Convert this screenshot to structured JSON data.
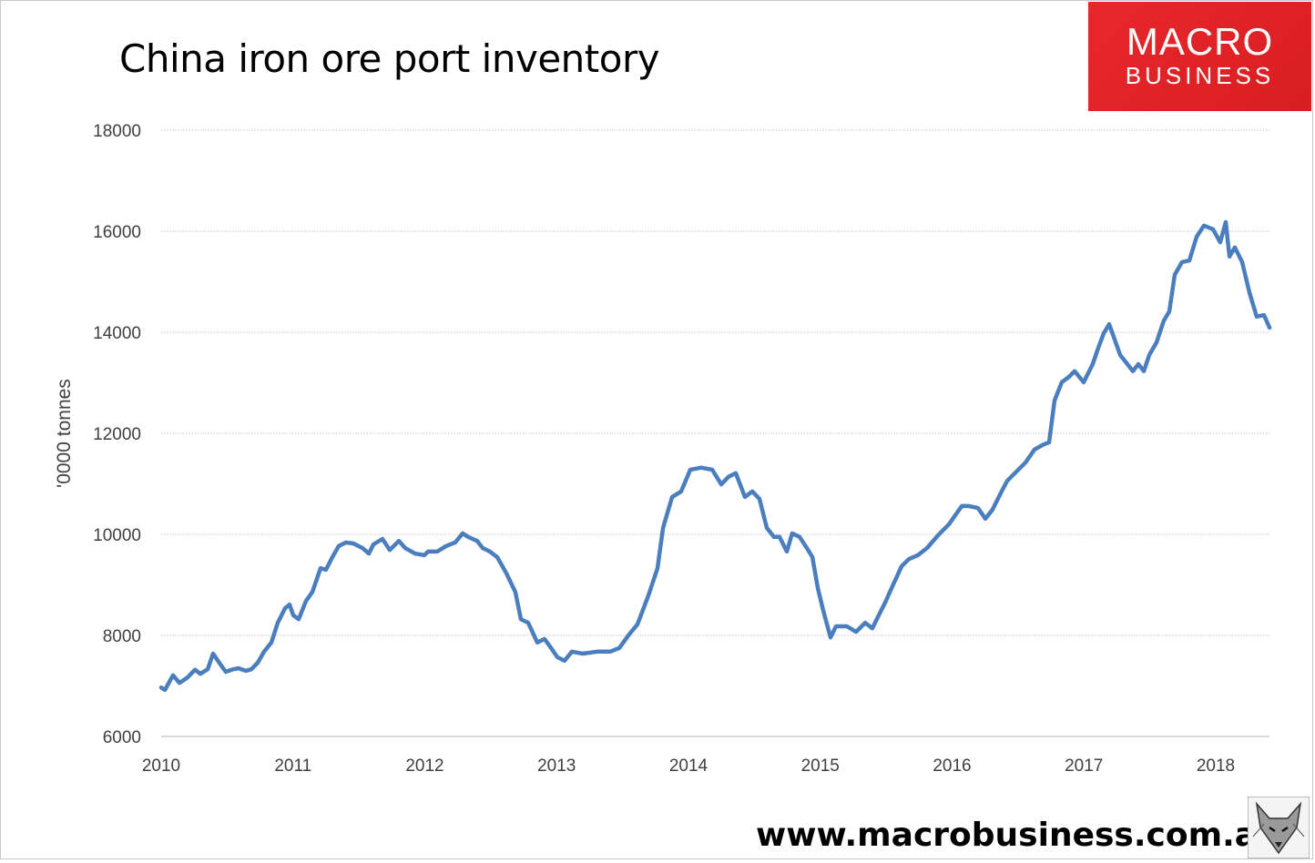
{
  "chart_data": {
    "type": "line",
    "title": "China iron ore port inventory",
    "xlabel": "",
    "ylabel": "'0000 tonnes",
    "xlim": [
      2010,
      2018.42
    ],
    "ylim": [
      6000,
      18000
    ],
    "x_ticks": [
      "2010",
      "2011",
      "2012",
      "2013",
      "2014",
      "2015",
      "2016",
      "2017",
      "2018"
    ],
    "y_ticks": [
      "6000",
      "8000",
      "10000",
      "12000",
      "14000",
      "16000",
      "18000"
    ],
    "grid": "horizontal",
    "legend": "none",
    "line_color": "#4a7ebf",
    "series": [
      {
        "x": [
          2010.0,
          2010.028,
          2010.09,
          2010.138,
          2010.2,
          2010.256,
          2010.297,
          2010.352,
          2010.394,
          2010.435,
          2010.49,
          2010.546,
          2010.587,
          2010.642,
          2010.684,
          2010.732,
          2010.781,
          2010.836,
          2010.884,
          2010.94,
          2010.974,
          2011.002,
          2011.043,
          2011.098,
          2011.147,
          2011.209,
          2011.25,
          2011.299,
          2011.347,
          2011.402,
          2011.458,
          2011.527,
          2011.575,
          2011.61,
          2011.679,
          2011.734,
          2011.803,
          2011.851,
          2011.927,
          2011.997,
          2012.024,
          2012.093,
          2012.162,
          2012.231,
          2012.287,
          2012.328,
          2012.397,
          2012.439,
          2012.494,
          2012.549,
          2012.618,
          2012.687,
          2012.729,
          2012.784,
          2012.853,
          2012.908,
          2012.95,
          2013.005,
          2013.06,
          2013.116,
          2013.198,
          2013.309,
          2013.406,
          2013.475,
          2013.544,
          2013.613,
          2013.696,
          2013.765,
          2013.807,
          2013.876,
          2013.945,
          2014.014,
          2014.097,
          2014.18,
          2014.249,
          2014.304,
          2014.359,
          2014.428,
          2014.484,
          2014.539,
          2014.594,
          2014.649,
          2014.691,
          2014.746,
          2014.787,
          2014.843,
          2014.898,
          2014.94,
          2014.981,
          2015.022,
          2015.078,
          2015.119,
          2015.202,
          2015.271,
          2015.34,
          2015.395,
          2015.423,
          2015.492,
          2015.547,
          2015.617,
          2015.672,
          2015.741,
          2015.81,
          2015.893,
          2015.976,
          2016.073,
          2016.128,
          2016.197,
          2016.252,
          2016.307,
          2016.376,
          2016.418,
          2016.487,
          2016.556,
          2016.625,
          2016.694,
          2016.736,
          2016.777,
          2016.832,
          2016.888,
          2016.929,
          2016.998,
          2017.067,
          2017.109,
          2017.15,
          2017.192,
          2017.275,
          2017.371,
          2017.413,
          2017.454,
          2017.496,
          2017.551,
          2017.606,
          2017.648,
          2017.689,
          2017.744,
          2017.8,
          2017.855,
          2017.91,
          2017.979,
          2018.034,
          2018.076,
          2018.104,
          2018.145,
          2018.2,
          2018.256,
          2018.311,
          2018.366,
          2018.408
        ],
        "y": [
          6970,
          6920,
          7210,
          7060,
          7170,
          7320,
          7240,
          7330,
          7640,
          7480,
          7280,
          7330,
          7350,
          7300,
          7330,
          7460,
          7680,
          7860,
          8250,
          8540,
          8610,
          8400,
          8320,
          8680,
          8860,
          9330,
          9300,
          9550,
          9770,
          9840,
          9820,
          9730,
          9620,
          9800,
          9910,
          9690,
          9870,
          9730,
          9620,
          9590,
          9660,
          9660,
          9770,
          9840,
          10020,
          9950,
          9870,
          9730,
          9660,
          9550,
          9230,
          8860,
          8320,
          8250,
          7860,
          7930,
          7780,
          7570,
          7500,
          7680,
          7640,
          7680,
          7680,
          7750,
          8000,
          8220,
          8790,
          9330,
          10130,
          10740,
          10850,
          11280,
          11320,
          11280,
          10990,
          11140,
          11210,
          10740,
          10850,
          10700,
          10130,
          9950,
          9950,
          9660,
          10020,
          9950,
          9730,
          9550,
          8940,
          8500,
          7960,
          8180,
          8180,
          8070,
          8250,
          8140,
          8290,
          8650,
          8970,
          9370,
          9510,
          9590,
          9730,
          9980,
          10200,
          10560,
          10560,
          10520,
          10310,
          10490,
          10850,
          11060,
          11240,
          11420,
          11680,
          11780,
          11820,
          12650,
          13010,
          13120,
          13230,
          13010,
          13370,
          13690,
          13980,
          14160,
          13550,
          13230,
          13370,
          13230,
          13550,
          13800,
          14230,
          14410,
          15140,
          15390,
          15420,
          15890,
          16110,
          16040,
          15780,
          16180,
          15500,
          15680,
          15390,
          14780,
          14310,
          14340,
          14090
        ]
      }
    ]
  },
  "logo": {
    "line1": "MACRO",
    "line2": "BUSINESS"
  },
  "footer": {
    "url": "www.macrobusiness.com.au"
  }
}
